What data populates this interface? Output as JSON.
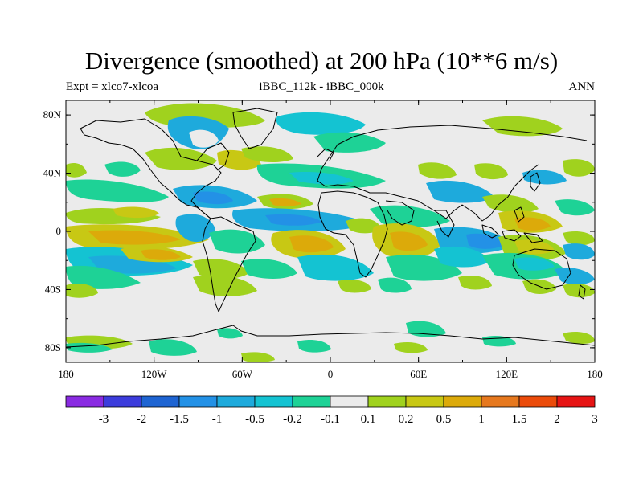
{
  "title": "Divergence (smoothed) at 200 hPa (10**6 m/s)",
  "left_string": "Expt = xlco7-xlcoa",
  "center_string": "iBBC_112k - iBBC_000k",
  "right_string": "ANN",
  "axes": {
    "lat_labels": [
      "80N",
      "40N",
      "0",
      "40S",
      "80S"
    ],
    "lat_values": [
      80,
      40,
      0,
      -40,
      -80
    ],
    "lon_labels": [
      "180",
      "120W",
      "60W",
      "0",
      "60E",
      "120E",
      "180"
    ],
    "lon_values": [
      -180,
      -120,
      -60,
      0,
      60,
      120,
      180
    ],
    "lon_range": [
      -180,
      180
    ],
    "lat_range": [
      -90,
      90
    ]
  },
  "colorbar": {
    "labels": [
      "-3",
      "-2",
      "-1.5",
      "-1",
      "-0.5",
      "-0.2",
      "-0.1",
      "0.1",
      "0.2",
      "0.5",
      "1",
      "1.5",
      "2",
      "3"
    ],
    "colors": [
      "#8a2be2",
      "#3c3cdc",
      "#1e64d2",
      "#2391e6",
      "#1eaadc",
      "#14c3d2",
      "#1ed296",
      "#ebebeb",
      "#a0d21e",
      "#c8c814",
      "#dcaa0a",
      "#e6781e",
      "#eb4b0a",
      "#e61414"
    ]
  },
  "colors": {
    "background_field": "#ebebeb",
    "coastline": "#000000"
  }
}
